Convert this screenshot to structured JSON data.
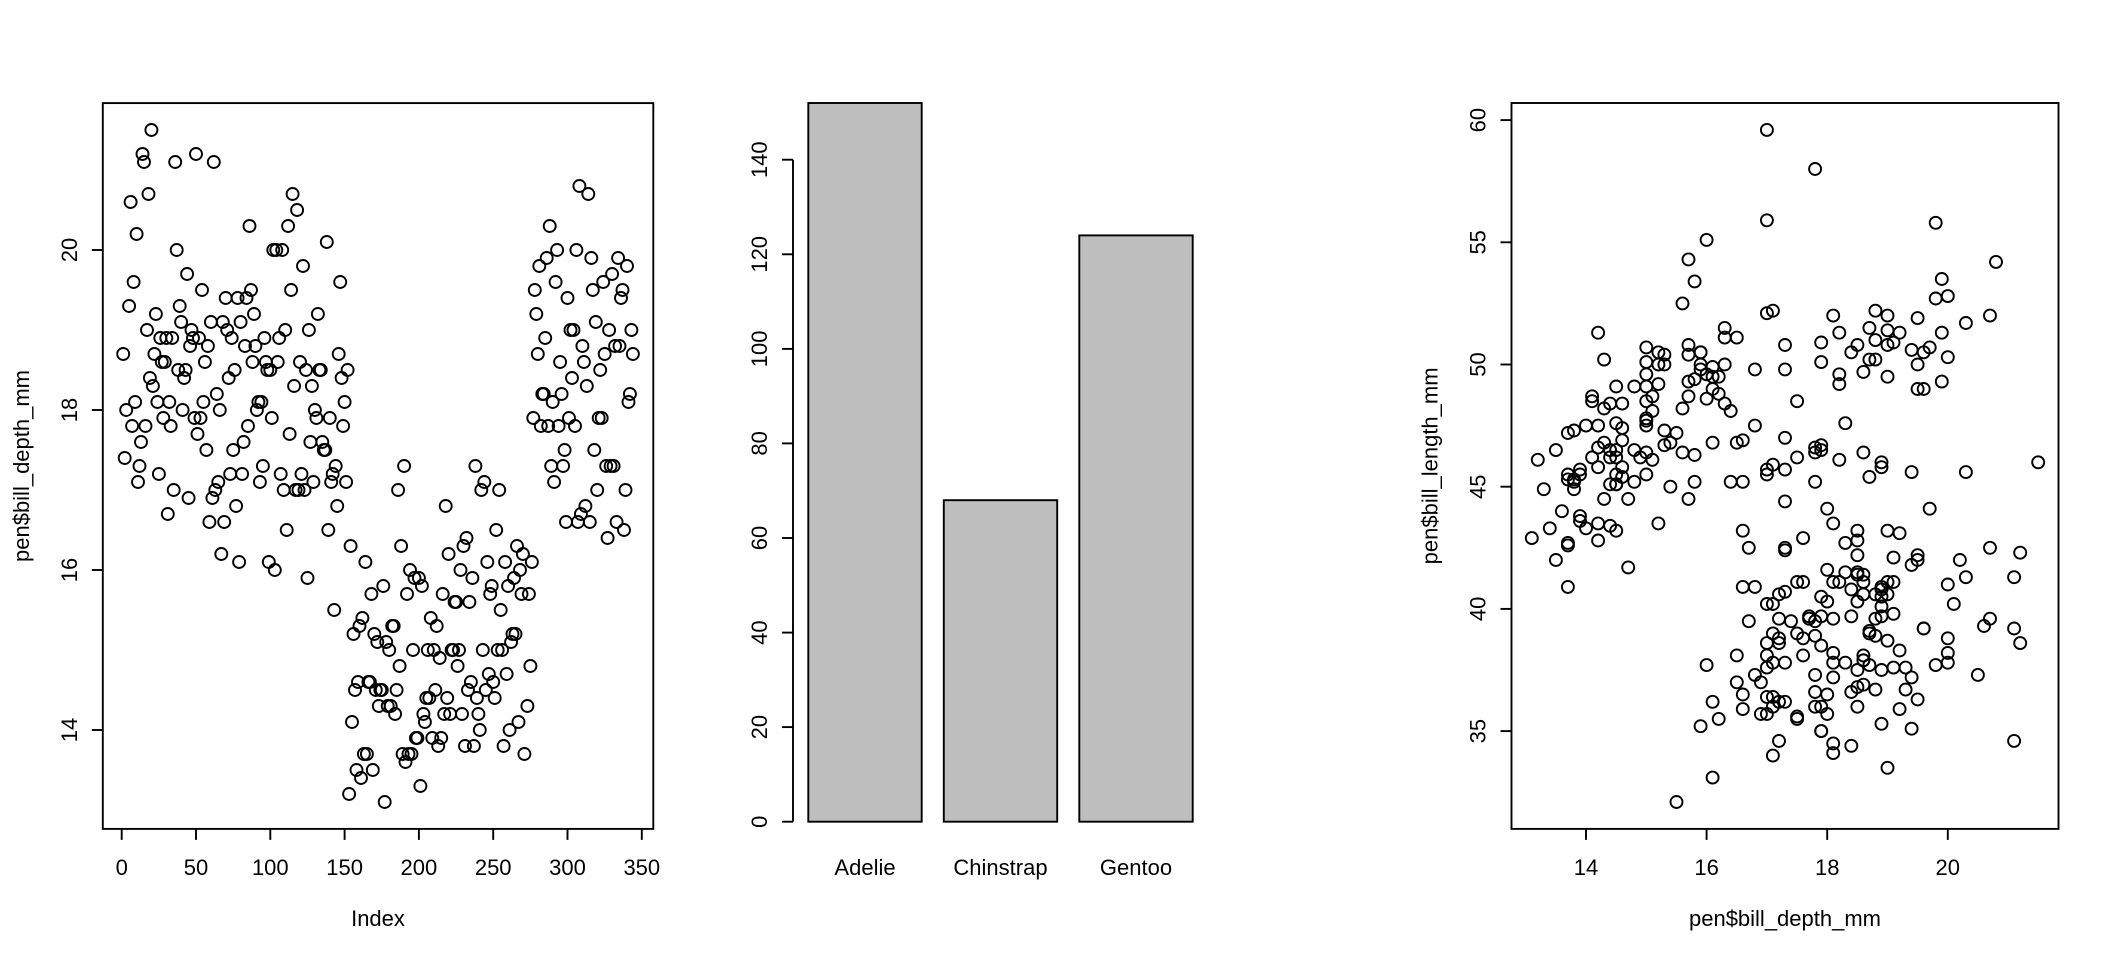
{
  "figure": {
    "background": "#ffffff",
    "foreground": "#000000",
    "layout": "three R base-graphics panels side by side"
  },
  "chart_data": {
    "panels": [
      {
        "type": "scatter",
        "title": "",
        "xlabel": "Index",
        "ylabel": "pen$bill_depth_mm",
        "x_source": "row_index",
        "y_source": "bill_depth_mm",
        "xticks": [
          0,
          50,
          100,
          150,
          200,
          250,
          300,
          350
        ],
        "yticks": [
          14,
          16,
          18,
          20
        ],
        "xlim": [
          -12.72,
          357.72
        ],
        "ylim": [
          12.764,
          21.836
        ],
        "n_points": 342,
        "marker": "open-circle",
        "grid": false,
        "legend": "none"
      },
      {
        "type": "bar",
        "title": "",
        "xlabel": "",
        "ylabel": "",
        "categories": [
          "Adelie",
          "Chinstrap",
          "Gentoo"
        ],
        "values": [
          152,
          68,
          124
        ],
        "yticks": [
          0,
          20,
          40,
          60,
          80,
          100,
          120,
          140
        ],
        "ylim": [
          -1.52,
          152
        ],
        "bar_fill": "#bebebe",
        "bar_border": "#000000",
        "grid": false,
        "legend": "none"
      },
      {
        "type": "scatter",
        "title": "",
        "xlabel": "pen$bill_depth_mm",
        "ylabel": "pen$bill_length_mm",
        "x_source": "bill_depth_mm",
        "y_source": "bill_length_mm",
        "xticks": [
          14,
          16,
          18,
          20
        ],
        "yticks": [
          35,
          40,
          45,
          50,
          55,
          60
        ],
        "xlim": [
          12.764,
          21.836
        ],
        "ylim": [
          31.0,
          60.7
        ],
        "n_points": 342,
        "marker": "open-circle",
        "grid": false,
        "legend": "none"
      }
    ],
    "dataset_columns": {
      "bill_length_mm": [
        39.1,
        39.5,
        40.3,
        null,
        36.7,
        39.3,
        38.9,
        39.2,
        34.1,
        42.0,
        37.8,
        37.8,
        41.1,
        38.6,
        34.6,
        36.6,
        38.7,
        42.5,
        34.4,
        46.0,
        37.8,
        37.7,
        35.9,
        38.2,
        38.8,
        35.3,
        40.6,
        40.5,
        37.9,
        40.5,
        39.5,
        37.2,
        39.5,
        40.9,
        36.4,
        39.2,
        38.8,
        42.2,
        37.6,
        39.8,
        36.5,
        40.8,
        36.0,
        44.1,
        37.0,
        39.6,
        41.1,
        37.5,
        36.0,
        42.3,
        39.6,
        40.1,
        35.0,
        42.0,
        34.5,
        41.4,
        39.0,
        40.6,
        36.5,
        37.6,
        35.7,
        41.3,
        37.6,
        41.1,
        36.4,
        41.6,
        35.5,
        41.1,
        35.9,
        41.8,
        33.5,
        39.7,
        39.6,
        45.8,
        35.5,
        42.8,
        40.9,
        37.2,
        36.2,
        42.1,
        34.6,
        42.9,
        36.7,
        35.1,
        37.3,
        41.3,
        36.3,
        36.9,
        38.3,
        38.9,
        35.7,
        41.1,
        34.0,
        39.6,
        36.2,
        40.8,
        38.1,
        40.3,
        33.1,
        43.2,
        35.0,
        41.0,
        37.7,
        37.8,
        37.9,
        39.7,
        38.6,
        38.2,
        38.1,
        43.2,
        38.1,
        45.6,
        39.7,
        42.2,
        39.6,
        42.7,
        38.6,
        37.3,
        35.7,
        41.1,
        36.2,
        37.7,
        40.2,
        41.4,
        35.2,
        40.6,
        38.8,
        41.5,
        39.0,
        44.1,
        38.5,
        43.1,
        36.8,
        37.5,
        38.1,
        41.1,
        35.6,
        40.2,
        37.0,
        39.7,
        40.2,
        40.6,
        32.1,
        40.7,
        37.3,
        39.0,
        39.2,
        36.6,
        36.0,
        37.8,
        36.0,
        41.5,
        46.1,
        50.0,
        48.7,
        50.0,
        47.6,
        46.5,
        45.4,
        46.7,
        43.3,
        46.8,
        40.9,
        49.0,
        45.5,
        48.4,
        45.8,
        49.3,
        42.0,
        49.2,
        46.2,
        48.7,
        50.2,
        45.1,
        46.5,
        46.3,
        42.9,
        46.1,
        44.5,
        47.8,
        48.2,
        50.0,
        47.3,
        42.8,
        45.1,
        59.6,
        49.1,
        48.4,
        42.6,
        44.4,
        44.0,
        48.7,
        42.7,
        49.6,
        45.3,
        49.6,
        50.5,
        43.6,
        45.5,
        50.5,
        44.9,
        45.2,
        46.6,
        48.5,
        45.1,
        50.1,
        46.5,
        45.0,
        43.8,
        45.5,
        43.2,
        50.4,
        45.3,
        46.2,
        45.7,
        54.3,
        45.8,
        49.8,
        46.2,
        49.5,
        43.5,
        50.7,
        47.7,
        46.4,
        48.2,
        46.5,
        46.4,
        48.6,
        47.5,
        51.1,
        45.2,
        45.2,
        49.1,
        52.5,
        47.4,
        50.0,
        44.9,
        50.8,
        43.4,
        51.3,
        47.5,
        52.1,
        47.5,
        52.2,
        45.5,
        49.5,
        44.5,
        50.8,
        49.4,
        46.9,
        48.4,
        51.1,
        48.5,
        55.9,
        47.2,
        49.1,
        47.3,
        46.8,
        41.7,
        53.4,
        43.3,
        48.1,
        50.5,
        49.8,
        43.5,
        51.5,
        46.2,
        55.1,
        44.5,
        48.8,
        47.2,
        null,
        46.8,
        50.4,
        45.2,
        49.9,
        46.5,
        50.0,
        51.3,
        45.4,
        52.7,
        45.2,
        46.1,
        51.3,
        46.0,
        51.3,
        46.6,
        51.7,
        47.0,
        52.0,
        45.9,
        50.5,
        50.3,
        58.0,
        46.4,
        49.2,
        42.4,
        48.5,
        43.2,
        50.6,
        46.7,
        52.0,
        50.5,
        49.5,
        46.4,
        52.8,
        40.9,
        54.2,
        42.5,
        51.0,
        49.7,
        47.5,
        47.6,
        52.0,
        46.9,
        53.5,
        49.0,
        46.2,
        50.9,
        45.5,
        50.9,
        50.8,
        50.1,
        49.0,
        51.5,
        49.8,
        48.1,
        51.4,
        45.7,
        50.7,
        42.5,
        52.2,
        45.2,
        49.3,
        50.2,
        45.6,
        51.9,
        46.8,
        45.7,
        55.8,
        43.5,
        49.6,
        50.8,
        50.2
      ],
      "bill_depth_mm": [
        18.7,
        17.4,
        18.0,
        null,
        19.3,
        20.6,
        17.8,
        19.6,
        18.1,
        20.2,
        17.1,
        17.3,
        17.6,
        21.2,
        21.1,
        17.8,
        19.0,
        20.7,
        18.4,
        21.5,
        18.3,
        18.7,
        19.2,
        18.1,
        17.2,
        18.9,
        18.6,
        17.9,
        18.6,
        18.9,
        16.7,
        18.1,
        17.8,
        18.9,
        17.0,
        21.1,
        20.0,
        18.5,
        19.3,
        19.1,
        18.0,
        18.4,
        18.5,
        19.7,
        16.9,
        18.8,
        19.0,
        18.9,
        17.9,
        21.2,
        17.7,
        18.9,
        17.9,
        19.5,
        18.1,
        18.6,
        17.5,
        18.8,
        16.6,
        19.1,
        16.9,
        21.1,
        17.0,
        18.2,
        17.1,
        18.0,
        16.2,
        19.1,
        16.6,
        19.4,
        19.0,
        18.4,
        17.2,
        18.9,
        17.5,
        18.5,
        16.8,
        19.4,
        16.1,
        19.1,
        17.2,
        17.6,
        18.8,
        19.4,
        17.8,
        20.3,
        19.5,
        18.6,
        19.2,
        18.8,
        18.0,
        18.1,
        17.1,
        18.1,
        17.3,
        18.9,
        18.6,
        18.5,
        16.1,
        18.5,
        17.9,
        20.0,
        16.0,
        20.0,
        18.6,
        18.9,
        17.2,
        20.0,
        17.0,
        19.0,
        16.5,
        20.3,
        17.7,
        19.5,
        20.7,
        18.3,
        17.0,
        20.5,
        17.0,
        18.6,
        17.2,
        19.8,
        17.0,
        18.5,
        15.9,
        19.0,
        17.6,
        18.3,
        17.1,
        18.0,
        17.9,
        19.2,
        18.5,
        18.5,
        17.6,
        17.5,
        17.5,
        20.1,
        16.5,
        17.9,
        17.1,
        17.2,
        15.5,
        17.3,
        16.8,
        18.7,
        19.6,
        18.4,
        17.8,
        18.1,
        17.1,
        18.5,
        13.2,
        16.3,
        14.1,
        15.2,
        14.5,
        13.5,
        14.6,
        15.3,
        13.4,
        15.4,
        13.7,
        16.1,
        13.7,
        14.6,
        14.6,
        15.7,
        13.5,
        15.2,
        14.5,
        15.1,
        14.3,
        14.5,
        14.5,
        15.8,
        13.1,
        15.1,
        14.3,
        15.0,
        14.3,
        15.3,
        15.3,
        14.2,
        14.5,
        17.0,
        14.8,
        16.3,
        13.7,
        17.3,
        13.6,
        15.7,
        13.7,
        16.0,
        13.7,
        15.0,
        15.9,
        13.9,
        13.9,
        15.9,
        13.3,
        15.8,
        14.2,
        14.1,
        14.4,
        15.0,
        14.4,
        15.4,
        13.9,
        15.0,
        14.5,
        15.3,
        13.8,
        14.9,
        13.9,
        15.7,
        14.2,
        16.8,
        14.4,
        16.2,
        14.2,
        15.0,
        15.0,
        15.6,
        15.6,
        14.8,
        15.0,
        16.0,
        14.2,
        16.3,
        13.8,
        16.4,
        14.5,
        15.6,
        14.6,
        15.9,
        13.8,
        17.3,
        14.4,
        14.2,
        14.0,
        17.0,
        15.0,
        17.1,
        14.5,
        16.1,
        14.7,
        15.7,
        15.8,
        14.6,
        14.4,
        16.5,
        15.0,
        17.0,
        15.5,
        15.0,
        13.8,
        16.1,
        14.7,
        15.8,
        14.0,
        15.1,
        15.2,
        15.9,
        15.2,
        16.3,
        14.1,
        16.0,
        15.7,
        16.2,
        13.7,
        null,
        14.3,
        15.7,
        14.8,
        16.1,
        17.9,
        19.5,
        19.2,
        18.7,
        19.8,
        17.8,
        18.2,
        18.2,
        18.9,
        19.9,
        17.8,
        20.3,
        17.3,
        18.1,
        17.1,
        19.6,
        20.0,
        17.8,
        18.6,
        18.2,
        17.3,
        17.5,
        16.6,
        19.4,
        17.9,
        19.0,
        18.4,
        19.0,
        17.8,
        20.0,
        16.6,
        20.8,
        16.7,
        18.8,
        18.6,
        16.8,
        18.3,
        20.7,
        16.6,
        19.9,
        19.5,
        17.5,
        19.1,
        17.0,
        17.9,
        18.5,
        17.9,
        19.6,
        18.7,
        17.3,
        16.4,
        19.0,
        17.3,
        19.7,
        17.3,
        18.8,
        16.6,
        19.9,
        18.8,
        19.4,
        19.5,
        16.5,
        17.0,
        19.8,
        18.1,
        18.2,
        19.0,
        18.7
      ]
    }
  }
}
